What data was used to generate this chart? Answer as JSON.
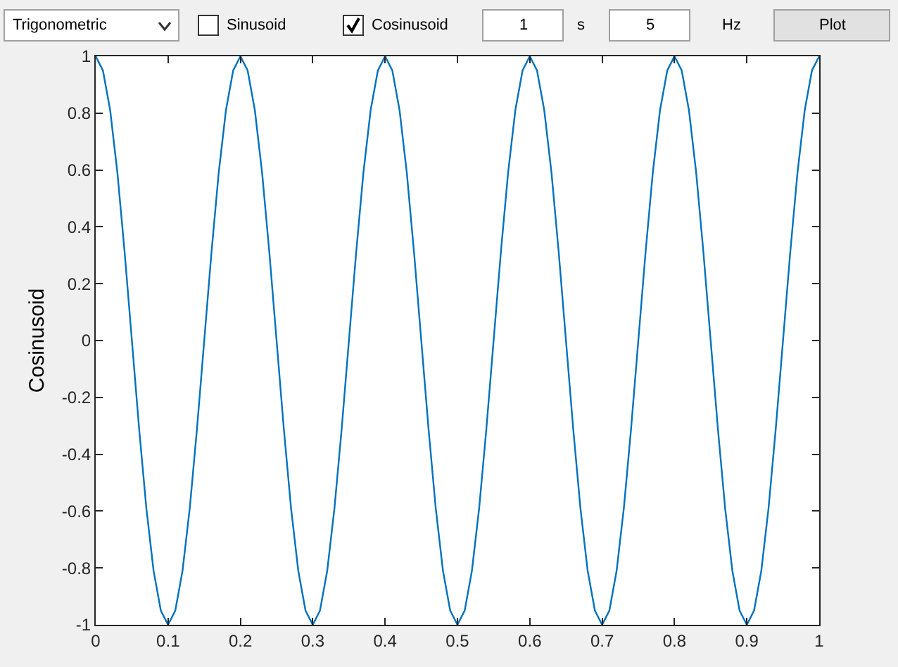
{
  "chart_data": {
    "type": "line",
    "ylabel": "Cosinusoid",
    "x": [
      0,
      0.01,
      0.02,
      0.03,
      0.04,
      0.05,
      0.06,
      0.07,
      0.08,
      0.09,
      0.1,
      0.11,
      0.12,
      0.13,
      0.14,
      0.15,
      0.16,
      0.17,
      0.18,
      0.19,
      0.2,
      0.21,
      0.22,
      0.23,
      0.24,
      0.25,
      0.26,
      0.27,
      0.28,
      0.29,
      0.3,
      0.31,
      0.32,
      0.33,
      0.34,
      0.35,
      0.36,
      0.37,
      0.38,
      0.39,
      0.4,
      0.41,
      0.42,
      0.43,
      0.44,
      0.45,
      0.46,
      0.47,
      0.48,
      0.49,
      0.5,
      0.51,
      0.52,
      0.53,
      0.54,
      0.55,
      0.56,
      0.57,
      0.58,
      0.59,
      0.6,
      0.61,
      0.62,
      0.63,
      0.64,
      0.65,
      0.66,
      0.67,
      0.68,
      0.69,
      0.7,
      0.71,
      0.72,
      0.73,
      0.74,
      0.75,
      0.76,
      0.77,
      0.78,
      0.79,
      0.8,
      0.81,
      0.82,
      0.83,
      0.84,
      0.85,
      0.86,
      0.87,
      0.88,
      0.89,
      0.9,
      0.91,
      0.92,
      0.93,
      0.94,
      0.95,
      0.96,
      0.97,
      0.98,
      0.99,
      1
    ],
    "series": [
      {
        "color": "#0072bd",
        "values": [
          1,
          0.95,
          0.81,
          0.59,
          0.31,
          0,
          -0.31,
          -0.59,
          -0.81,
          -0.95,
          -1,
          -0.95,
          -0.81,
          -0.59,
          -0.31,
          0,
          0.31,
          0.59,
          0.81,
          0.95,
          1,
          0.95,
          0.81,
          0.59,
          0.31,
          0,
          -0.31,
          -0.59,
          -0.81,
          -0.95,
          -1,
          -0.95,
          -0.81,
          -0.59,
          -0.31,
          0,
          0.31,
          0.59,
          0.81,
          0.95,
          1,
          0.95,
          0.81,
          0.59,
          0.31,
          0,
          -0.31,
          -0.59,
          -0.81,
          -0.95,
          -1,
          -0.95,
          -0.81,
          -0.59,
          -0.31,
          0,
          0.31,
          0.59,
          0.81,
          0.95,
          1,
          0.95,
          0.81,
          0.59,
          0.31,
          0,
          -0.31,
          -0.59,
          -0.81,
          -0.95,
          -1,
          -0.95,
          -0.81,
          -0.59,
          -0.31,
          0,
          0.31,
          0.59,
          0.81,
          0.95,
          1,
          0.95,
          0.81,
          0.59,
          0.31,
          0,
          -0.31,
          -0.59,
          -0.81,
          -0.95,
          -1,
          -0.95,
          -0.81,
          -0.59,
          -0.31,
          0,
          0.31,
          0.59,
          0.81,
          0.95,
          1
        ]
      }
    ],
    "xlim": [
      0,
      1
    ],
    "xticks": [
      0,
      0.1,
      0.2,
      0.3,
      0.4,
      0.5,
      0.6,
      0.7,
      0.8,
      0.9,
      1
    ],
    "ylim": [
      -1,
      1
    ],
    "yticks": [
      -1,
      -0.8,
      -0.6,
      -0.4,
      -0.2,
      0,
      0.2,
      0.4,
      0.6,
      0.8,
      1
    ],
    "grid": false,
    "annotations": [
      "Trigonometric",
      "Sinusoid",
      "Cosinusoid",
      "1",
      "s",
      "5",
      "Hz",
      "Plot"
    ]
  }
}
